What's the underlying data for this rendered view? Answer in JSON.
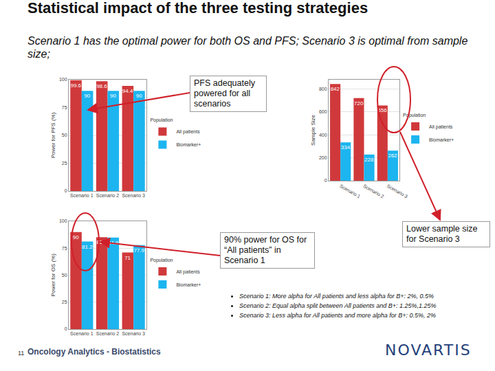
{
  "slide": {
    "title": "Statistical impact of the three testing strategies",
    "subtitle": "Scenario 1 has the optimal power for both OS and PFS; Scenario 3 is optimal from sample size;",
    "callouts": [
      "PFS adequately powered for all scenarios",
      "90% power for OS for “All patients” in Scenario 1",
      "Lower sample size for Scenario 3"
    ],
    "bullets": [
      "Scenario 1: More alpha for All patients and less alpha for B+: 2%, 0.5%",
      "Scenario 2: Equal alpha split between All patients and B+: 1.25%,1.25%",
      "Scenario 3: Less alpha for All patients and more alpha for B+: 0.5%, 2%"
    ],
    "page_number": 11,
    "footer": "Oncology Analytics - Biostatistics",
    "logo": "NOVARTIS"
  },
  "chart_data": [
    {
      "type": "bar",
      "y_label": "Power for PFS (%)",
      "categories": [
        "Scenario 1",
        "Scenario 2",
        "Scenario 3"
      ],
      "series": [
        {
          "name": "All patients",
          "color": "#d0393b",
          "values": [
            99.6,
            98.6,
            94.4
          ]
        },
        {
          "name": "Biomarker+",
          "color": "#1cb5f0",
          "values": [
            90,
            90,
            90
          ]
        }
      ],
      "ylim": [
        0,
        100
      ],
      "yticks": [
        0,
        25,
        50,
        75,
        100
      ],
      "grid": true,
      "legend": "right",
      "legend_title": "Population",
      "data_labels": true
    },
    {
      "type": "bar",
      "y_label": "Sample Size",
      "categories": [
        "Scenario 1",
        "Scenario 2",
        "Scenario 3"
      ],
      "series": [
        {
          "name": "All patients",
          "color": "#d0393b",
          "values": [
            842,
            720,
            656
          ]
        },
        {
          "name": "Biomarker+",
          "color": "#1cb5f0",
          "values": [
            334,
            228,
            262
          ]
        }
      ],
      "ylim": [
        0,
        880
      ],
      "yticks": [
        0,
        200,
        400,
        600,
        800
      ],
      "grid": true,
      "legend": "right",
      "legend_title": "Population",
      "data_labels": true
    },
    {
      "type": "bar",
      "y_label": "Power for OS (%)",
      "categories": [
        "Scenario 1",
        "Scenario 2",
        "Scenario 3"
      ],
      "series": [
        {
          "name": "All patients",
          "color": "#d0393b",
          "values": [
            90,
            85.2,
            71
          ]
        },
        {
          "name": "Biomarker+",
          "color": "#1cb5f0",
          "values": [
            81.2,
            84.9,
            77.9
          ]
        }
      ],
      "ylim": [
        0,
        100
      ],
      "yticks": [
        0,
        25,
        50,
        75,
        100
      ],
      "grid": true,
      "legend": "right",
      "legend_title": "Population",
      "data_labels": true
    }
  ]
}
